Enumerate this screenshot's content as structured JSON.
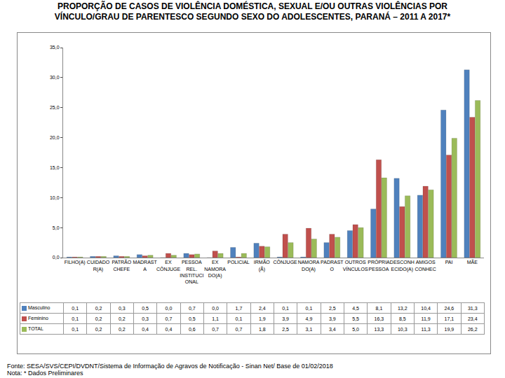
{
  "chart_data": {
    "type": "bar",
    "title": "PROPORÇÃO DE CASOS DE VIOLÊNCIA DOMÉSTICA, SEXUAL E/OU OUTRAS VIOLÊNCIAS POR\nVÍNCULO/GRAU DE PARENTESCO SEGUNDO SEXO DO ADOLESCENTES, PARANÁ – 2011 A 2017*",
    "categories": [
      "FILHO(A)",
      "CUIDADO R(A)",
      "PATRÃO CHEFE",
      "MADRAST A",
      "EX CÔNJUGE",
      "PESSOA REL. INSTITUCI ONAL",
      "EX NAMORA DO(A)",
      "POLICIAL",
      "IRMÃO (Ã)",
      "CÔNJUGE",
      "NAMORA DO(A)",
      "PADRAST O",
      "OUTROS VÍNCULOS",
      "PRÓPRIA PESSOA",
      "DESCONH ECIDO(A)",
      "AMIGOS CONHEC",
      "PAI",
      "MÃE"
    ],
    "series": [
      {
        "name": "Masculino",
        "color": "#4f81bd",
        "values": [
          0.1,
          0.2,
          0.3,
          0.5,
          0.0,
          0.7,
          0.0,
          1.7,
          2.4,
          0.1,
          0.1,
          2.5,
          4.5,
          8.1,
          13.2,
          10.4,
          24.6,
          31.3
        ],
        "value_labels": [
          "0,1",
          "0,2",
          "0,3",
          "0,5",
          "0,0",
          "0,7",
          "0,0",
          "1,7",
          "2,4",
          "0,1",
          "0,1",
          "2,5",
          "4,5",
          "8,1",
          "13,2",
          "10,4",
          "24,6",
          "31,3"
        ]
      },
      {
        "name": "Feminino",
        "color": "#c0504d",
        "values": [
          0.1,
          0.2,
          0.2,
          0.3,
          0.7,
          0.5,
          1.1,
          0.1,
          1.9,
          3.9,
          4.9,
          3.9,
          5.5,
          16.3,
          8.5,
          11.9,
          17.1,
          23.4
        ],
        "value_labels": [
          "0,1",
          "0,2",
          "0,2",
          "0,3",
          "0,7",
          "0,5",
          "1,1",
          "0,1",
          "1,9",
          "3,9",
          "4,9",
          "3,9",
          "5,5",
          "16,3",
          "8,5",
          "11,9",
          "17,1",
          "23,4"
        ]
      },
      {
        "name": "TOTAL",
        "color": "#9bbb59",
        "values": [
          0.1,
          0.2,
          0.2,
          0.4,
          0.4,
          0.6,
          0.7,
          0.7,
          1.8,
          2.5,
          3.1,
          3.4,
          5.0,
          13.3,
          10.3,
          11.3,
          19.9,
          26.2
        ],
        "value_labels": [
          "0,1",
          "0,2",
          "0,2",
          "0,4",
          "0,4",
          "0,6",
          "0,7",
          "0,7",
          "1,8",
          "2,5",
          "3,1",
          "3,4",
          "5,0",
          "13,3",
          "10,3",
          "11,3",
          "19,9",
          "26,2"
        ]
      }
    ],
    "ylim": [
      0,
      35
    ],
    "yticks": [
      {
        "value": 0,
        "label": "0,0"
      },
      {
        "value": 5,
        "label": "5,0"
      },
      {
        "value": 10,
        "label": "10,0"
      },
      {
        "value": 15,
        "label": "15,0"
      },
      {
        "value": 20,
        "label": "20,0"
      },
      {
        "value": 25,
        "label": "25,0"
      },
      {
        "value": 30,
        "label": "30,0"
      },
      {
        "value": 35,
        "label": "35,0"
      }
    ],
    "grid": false,
    "notes": [
      "Fonte: SESA/SVS/CEPI/DVDNT/Sistema de Informação de Agravos de Notificação - Sinan Net/ Base de 01/02/2018",
      "Nota: * Dados Preliminares"
    ]
  }
}
